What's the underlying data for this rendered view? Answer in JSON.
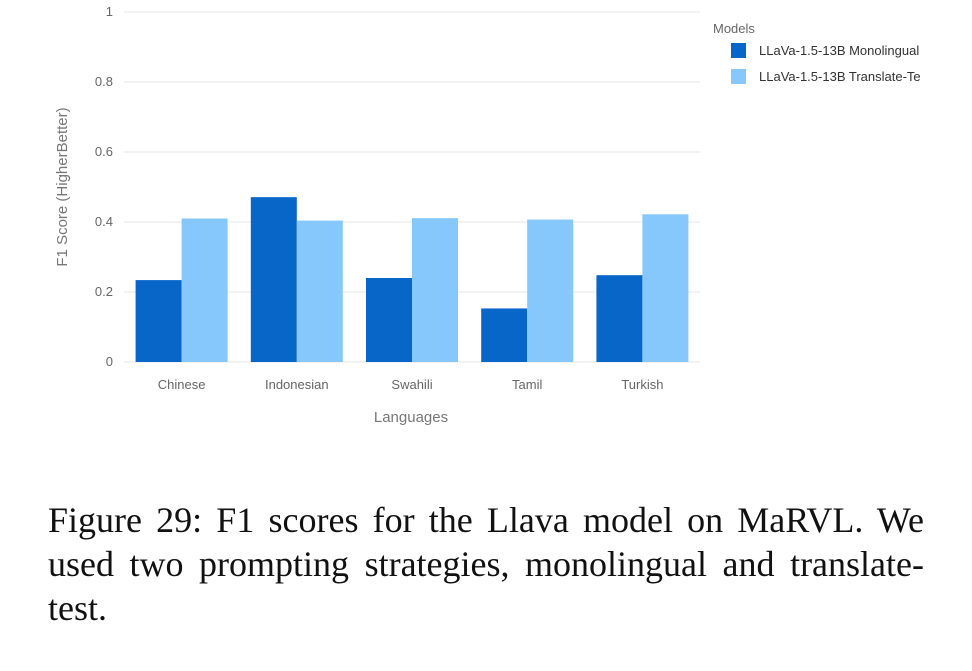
{
  "chart_data": {
    "type": "bar",
    "title": "",
    "xlabel": "Languages",
    "ylabel": "F1 Score (HigherBetter)",
    "categories": [
      "Chinese",
      "Indonesian",
      "Swahili",
      "Tamil",
      "Turkish"
    ],
    "ylim": [
      0,
      1
    ],
    "yticks": [
      "0",
      "0.2",
      "0.4",
      "0.6",
      "0.8",
      "1"
    ],
    "grid": true,
    "legend_title": "Models",
    "legend_position": "top-right",
    "series": [
      {
        "name": "LLaVa-1.5-13B Monolingual",
        "color": "#0766c8",
        "values": [
          0.234,
          0.471,
          0.24,
          0.153,
          0.248
        ]
      },
      {
        "name": "LLaVa-1.5-13B Translate-Te",
        "color": "#86c8fb",
        "values": [
          0.41,
          0.404,
          0.411,
          0.407,
          0.422
        ]
      }
    ]
  },
  "caption": {
    "text": "Figure 29: F1 scores for the Llava model on MaRVL. We used two prompting strategies, monolingual and translate-test."
  }
}
